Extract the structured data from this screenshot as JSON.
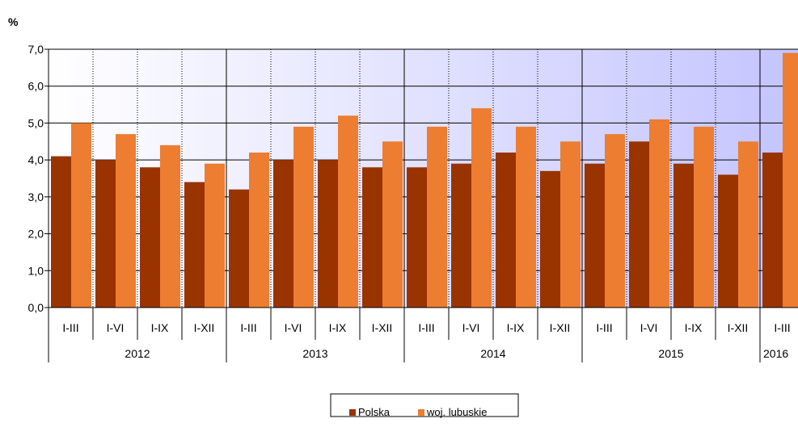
{
  "chart_data": {
    "type": "bar",
    "title": "",
    "unit_label": "%",
    "xlabel": "",
    "ylabel": "",
    "ylim": [
      0,
      7
    ],
    "yticks": [
      "0,0",
      "1,0",
      "2,0",
      "3,0",
      "4,0",
      "5,0",
      "6,0",
      "7,0"
    ],
    "categories": [
      "I-III",
      "I-VI",
      "I-IX",
      "I-XII",
      "I-III",
      "I-VI",
      "I-IX",
      "I-XII",
      "I-III",
      "I-VI",
      "I-IX",
      "I-XII",
      "I-III",
      "I-VI",
      "I-IX",
      "I-XII",
      "I-III"
    ],
    "groups": [
      {
        "label": "2012",
        "count": 4
      },
      {
        "label": "2013",
        "count": 4
      },
      {
        "label": "2014",
        "count": 4
      },
      {
        "label": "2015",
        "count": 4
      },
      {
        "label": "2016",
        "count": 1
      }
    ],
    "series": [
      {
        "name": "Polska",
        "color": "#993300",
        "values": [
          4.1,
          4.0,
          3.8,
          3.4,
          3.2,
          4.0,
          4.0,
          3.8,
          3.8,
          3.9,
          4.2,
          3.7,
          3.9,
          4.5,
          3.9,
          3.6,
          4.2
        ]
      },
      {
        "name": "woj. lubuskie",
        "color": "#ED7D31",
        "values": [
          5.0,
          4.7,
          4.4,
          3.9,
          4.2,
          4.9,
          5.2,
          4.5,
          4.9,
          5.4,
          4.9,
          4.5,
          4.7,
          5.1,
          4.9,
          4.5,
          6.9
        ]
      }
    ],
    "grid": true,
    "legend_position": "bottom"
  }
}
